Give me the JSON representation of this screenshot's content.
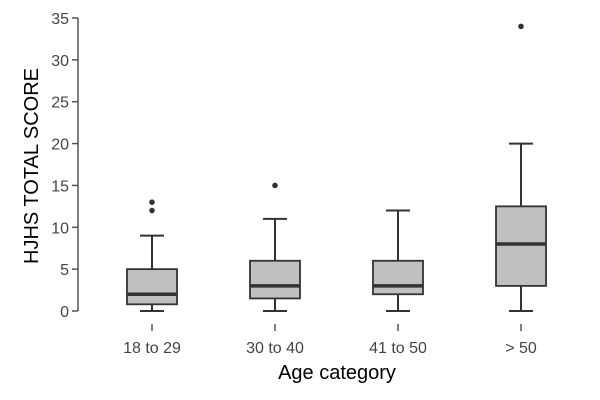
{
  "chart_data": {
    "type": "box",
    "title": "",
    "xlabel": "Age category",
    "ylabel": "HJHS TOTAL SCORE",
    "ylim": [
      0,
      35
    ],
    "yticks": [
      0,
      5,
      10,
      15,
      20,
      25,
      30,
      35
    ],
    "grid": false,
    "categories": [
      "18 to 29",
      "30 to 40",
      "41 to 50",
      "> 50"
    ],
    "boxes": [
      {
        "category": "18 to 29",
        "min": 0,
        "q1": 0.8,
        "median": 2,
        "q3": 5,
        "max": 9,
        "outliers": [
          12,
          13
        ]
      },
      {
        "category": "30 to 40",
        "min": 0,
        "q1": 1.5,
        "median": 3,
        "q3": 6,
        "max": 11,
        "outliers": [
          15
        ]
      },
      {
        "category": "41 to 50",
        "min": 0,
        "q1": 2,
        "median": 3,
        "q3": 6,
        "max": 12,
        "outliers": []
      },
      {
        "category": "> 50",
        "min": 0,
        "q1": 3,
        "median": 8,
        "q3": 12.5,
        "max": 20,
        "outliers": [
          34
        ]
      }
    ],
    "colors": {
      "box_fill": "#c0c0c0",
      "box_stroke": "#333333",
      "axis": "#555555",
      "outlier": "#333333"
    }
  }
}
